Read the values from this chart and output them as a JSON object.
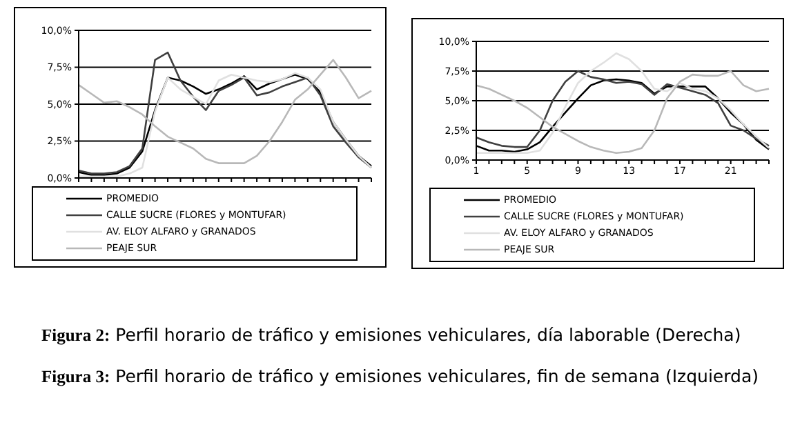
{
  "chart_data": [
    {
      "type": "line",
      "categories": [
        null,
        null,
        null,
        null,
        null,
        null,
        null,
        null,
        null,
        null,
        null,
        null,
        null,
        null,
        null,
        null,
        null,
        null,
        null,
        null,
        null,
        null,
        null,
        null
      ],
      "series": [
        {
          "name": "PROMEDIO",
          "color": "#000000",
          "values": [
            0.4,
            0.2,
            0.2,
            0.3,
            0.7,
            1.8,
            4.6,
            6.8,
            6.6,
            6.2,
            5.7,
            6.0,
            6.4,
            6.9,
            6.0,
            6.4,
            6.7,
            7.0,
            6.7,
            5.8,
            3.8,
            2.6,
            1.5,
            0.8
          ]
        },
        {
          "name": "CALLE SUCRE (FLORES y MONTUFAR)",
          "color": "#404040",
          "values": [
            0.5,
            0.3,
            0.3,
            0.4,
            0.8,
            2.0,
            8.0,
            8.5,
            6.6,
            5.5,
            4.6,
            5.9,
            6.3,
            6.8,
            5.6,
            5.8,
            6.2,
            6.5,
            6.8,
            5.6,
            3.5,
            2.4,
            1.4,
            0.7
          ]
        },
        {
          "name": "AV. ELOY ALFARO y GRANADOS",
          "color": "#e0e0e0",
          "values": [
            0.1,
            0.1,
            0.1,
            0.1,
            0.3,
            0.7,
            4.5,
            6.8,
            6.0,
            5.5,
            5.0,
            6.6,
            7.0,
            6.8,
            6.6,
            6.5,
            6.7,
            7.1,
            6.8,
            6.0,
            3.8,
            2.6,
            1.5,
            0.7
          ]
        },
        {
          "name": "PEAJE SUR",
          "color": "#b8b8b8",
          "values": [
            6.3,
            5.7,
            5.1,
            5.2,
            4.8,
            4.3,
            3.5,
            2.8,
            2.4,
            2.0,
            1.3,
            1.0,
            1.0,
            1.0,
            1.5,
            2.5,
            3.8,
            5.3,
            6.0,
            7.0,
            8.0,
            6.8,
            5.4,
            5.9
          ]
        }
      ],
      "ylim": [
        0,
        10
      ],
      "yticks": [
        {
          "value": 0,
          "label": "0,0%"
        },
        {
          "value": 2.5,
          "label": "2,5%"
        },
        {
          "value": 5,
          "label": "5,0%"
        },
        {
          "value": 7.5,
          "label": "7,5%"
        },
        {
          "value": 10,
          "label": "10,0%"
        }
      ],
      "grid": "y",
      "legend": "bottom",
      "tick_labels": "y",
      "marker": "none",
      "line_style": "solid",
      "annotations": [
        "Figura 2: Perfil horario de tráfico y emisiones vehiculares, día laborable (Derecha)",
        "Figura 3: Perfil horario de tráfico y emisiones vehiculares, fin de semana (Izquierda)"
      ]
    },
    {
      "type": "line",
      "categories": [
        "1",
        null,
        null,
        null,
        "5",
        null,
        null,
        null,
        "9",
        null,
        null,
        null,
        "13",
        null,
        null,
        null,
        "17",
        null,
        null,
        null,
        "21",
        null,
        null,
        null
      ],
      "series": [
        {
          "name": "PROMEDIO",
          "color": "#000000",
          "values": [
            1.2,
            0.8,
            0.8,
            0.7,
            0.9,
            1.5,
            2.8,
            4.0,
            5.2,
            6.3,
            6.7,
            6.8,
            6.7,
            6.5,
            5.6,
            6.2,
            6.2,
            6.2,
            6.2,
            5.2,
            4.0,
            3.0,
            1.7,
            0.9
          ]
        },
        {
          "name": "CALLE SUCRE (FLORES y MONTUFAR)",
          "color": "#404040",
          "values": [
            1.9,
            1.5,
            1.2,
            1.1,
            1.1,
            2.5,
            5.0,
            6.6,
            7.5,
            7.0,
            6.8,
            6.5,
            6.6,
            6.4,
            5.5,
            6.4,
            6.1,
            5.8,
            5.5,
            4.8,
            2.9,
            2.5,
            1.8,
            1.2
          ]
        },
        {
          "name": "AV. ELOY ALFARO y GRANADOS",
          "color": "#e0e0e0",
          "values": [
            0.6,
            0.6,
            0.6,
            0.6,
            0.6,
            0.8,
            2.3,
            4.5,
            6.5,
            7.5,
            8.2,
            9.0,
            8.5,
            7.5,
            6.0,
            5.8,
            6.5,
            6.0,
            5.8,
            5.2,
            4.2,
            3.0,
            2.0,
            1.0
          ]
        },
        {
          "name": "PEAJE SUR",
          "color": "#b8b8b8",
          "values": [
            6.3,
            6.0,
            5.5,
            5.0,
            4.4,
            3.6,
            2.8,
            2.2,
            1.6,
            1.1,
            0.8,
            0.6,
            0.7,
            1.0,
            2.5,
            5.2,
            6.6,
            7.2,
            7.1,
            7.1,
            7.5,
            6.3,
            5.8,
            6.0
          ]
        }
      ],
      "ylim": [
        0,
        10
      ],
      "yticks": [
        {
          "value": 0,
          "label": "0,0%"
        },
        {
          "value": 2.5,
          "label": "2,5%"
        },
        {
          "value": 5,
          "label": "5,0%"
        },
        {
          "value": 7.5,
          "label": "7,5%"
        },
        {
          "value": 10,
          "label": "10,0%"
        }
      ],
      "grid": "y",
      "legend": "bottom",
      "marker": "none",
      "line_style": "solid"
    }
  ]
}
